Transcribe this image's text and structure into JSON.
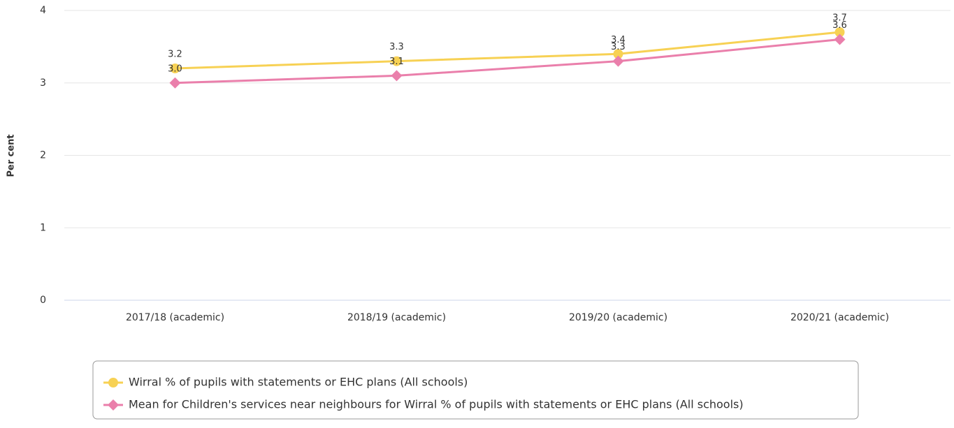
{
  "chart_data": {
    "type": "line",
    "y_label": "Per cent",
    "categories": [
      "2017/18 (academic)",
      "2018/19 (academic)",
      "2019/20 (academic)",
      "2020/21 (academic)"
    ],
    "series": [
      {
        "name": "Wirral % of pupils with statements or EHC plans (All schools)",
        "color": "#f7d154",
        "marker": "circle",
        "values": [
          3.2,
          3.3,
          3.4,
          3.7
        ],
        "value_labels": [
          "3.2",
          "3.3",
          "3.4",
          "3.7"
        ]
      },
      {
        "name": "Mean for Children's services near neighbours for Wirral % of pupils with statements or EHC plans (All schools)",
        "color": "#ea7fab",
        "marker": "diamond",
        "values": [
          3.0,
          3.1,
          3.3,
          3.6
        ],
        "value_labels": [
          "3.0",
          "3.1",
          "3.3",
          "3.6"
        ]
      }
    ],
    "ylim": [
      0,
      4
    ],
    "yticks": [
      0,
      1,
      2,
      3,
      4
    ],
    "grid": true,
    "legend": "bottom"
  }
}
